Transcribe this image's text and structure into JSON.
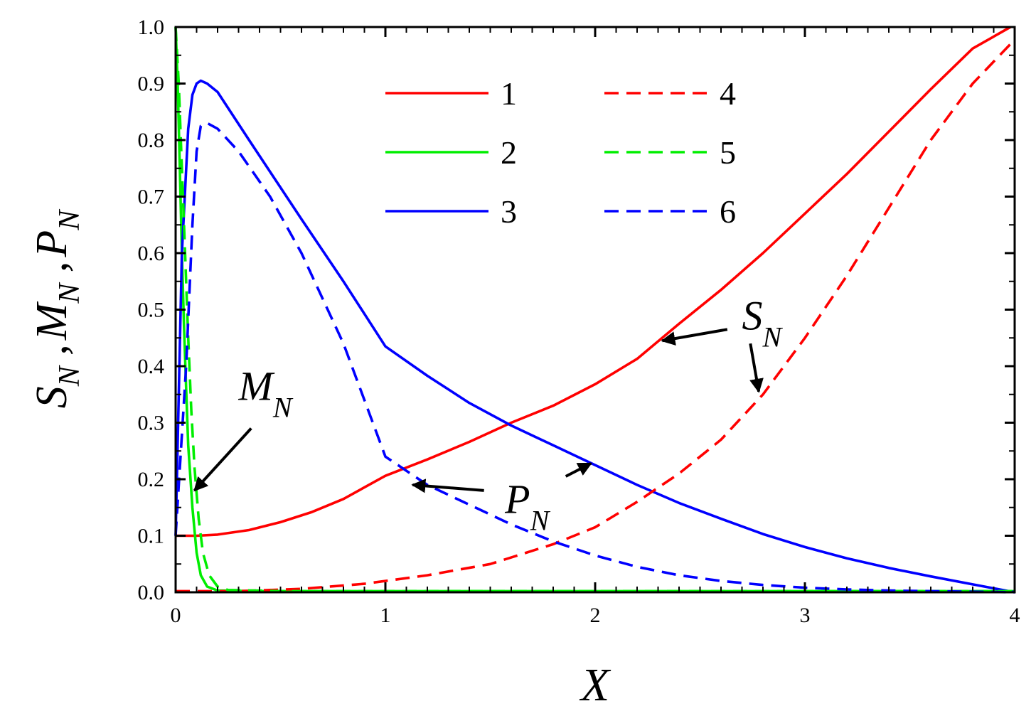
{
  "chart_data": {
    "type": "line",
    "xlabel": "X",
    "ylabel_parts": [
      {
        "main": "S",
        "sub": "N"
      },
      {
        "main": "M",
        "sub": "N"
      },
      {
        "main": "P",
        "sub": "N"
      }
    ],
    "xlim": [
      0,
      4
    ],
    "ylim": [
      0,
      1.0
    ],
    "x_ticks": [
      "0",
      "1",
      "2",
      "3",
      "4"
    ],
    "y_ticks": [
      "0.0",
      "0.1",
      "0.2",
      "0.3",
      "0.4",
      "0.5",
      "0.6",
      "0.7",
      "0.8",
      "0.9",
      "1.0"
    ],
    "grid": false,
    "legend_position": "top-center",
    "series": [
      {
        "name": "1",
        "color": "#ff0000",
        "dash": "solid",
        "points": [
          [
            0,
            0.1
          ],
          [
            0.1,
            0.1
          ],
          [
            0.2,
            0.102
          ],
          [
            0.35,
            0.11
          ],
          [
            0.5,
            0.124
          ],
          [
            0.65,
            0.142
          ],
          [
            0.8,
            0.165
          ],
          [
            1.0,
            0.206
          ],
          [
            1.2,
            0.235
          ],
          [
            1.4,
            0.266
          ],
          [
            1.6,
            0.3
          ],
          [
            1.8,
            0.33
          ],
          [
            2.0,
            0.368
          ],
          [
            2.2,
            0.413
          ],
          [
            2.4,
            0.475
          ],
          [
            2.6,
            0.535
          ],
          [
            2.8,
            0.6
          ],
          [
            3.0,
            0.67
          ],
          [
            3.2,
            0.74
          ],
          [
            3.4,
            0.815
          ],
          [
            3.6,
            0.89
          ],
          [
            3.8,
            0.962
          ],
          [
            3.98,
            1.0
          ]
        ]
      },
      {
        "name": "2",
        "color": "#00ee00",
        "dash": "solid",
        "points": [
          [
            0,
            1.0
          ],
          [
            0.01,
            0.9
          ],
          [
            0.02,
            0.75
          ],
          [
            0.03,
            0.6
          ],
          [
            0.04,
            0.47
          ],
          [
            0.05,
            0.36
          ],
          [
            0.06,
            0.26
          ],
          [
            0.08,
            0.15
          ],
          [
            0.1,
            0.07
          ],
          [
            0.12,
            0.03
          ],
          [
            0.15,
            0.01
          ],
          [
            0.2,
            0.003
          ],
          [
            0.4,
            0.002
          ],
          [
            1.0,
            0.002
          ],
          [
            2.0,
            0.002
          ],
          [
            3.0,
            0.002
          ],
          [
            4.0,
            0.002
          ]
        ]
      },
      {
        "name": "3",
        "color": "#0000ff",
        "dash": "solid",
        "points": [
          [
            0,
            0.1
          ],
          [
            0.03,
            0.6
          ],
          [
            0.06,
            0.82
          ],
          [
            0.08,
            0.88
          ],
          [
            0.1,
            0.9
          ],
          [
            0.12,
            0.905
          ],
          [
            0.15,
            0.9
          ],
          [
            0.2,
            0.885
          ],
          [
            0.35,
            0.8
          ],
          [
            0.6,
            0.66
          ],
          [
            0.8,
            0.55
          ],
          [
            1.0,
            0.435
          ],
          [
            1.2,
            0.383
          ],
          [
            1.4,
            0.335
          ],
          [
            1.6,
            0.295
          ],
          [
            1.8,
            0.26
          ],
          [
            2.0,
            0.225
          ],
          [
            2.2,
            0.19
          ],
          [
            2.4,
            0.158
          ],
          [
            2.6,
            0.13
          ],
          [
            2.8,
            0.103
          ],
          [
            3.0,
            0.08
          ],
          [
            3.2,
            0.06
          ],
          [
            3.4,
            0.043
          ],
          [
            3.6,
            0.028
          ],
          [
            3.8,
            0.014
          ],
          [
            4.0,
            0.0
          ]
        ]
      },
      {
        "name": "4",
        "color": "#ff0000",
        "dash": "dashed",
        "points": [
          [
            0,
            0.002
          ],
          [
            0.3,
            0.002
          ],
          [
            0.6,
            0.006
          ],
          [
            0.9,
            0.015
          ],
          [
            1.2,
            0.03
          ],
          [
            1.5,
            0.05
          ],
          [
            1.8,
            0.085
          ],
          [
            2.0,
            0.115
          ],
          [
            2.2,
            0.16
          ],
          [
            2.4,
            0.21
          ],
          [
            2.6,
            0.27
          ],
          [
            2.8,
            0.35
          ],
          [
            3.0,
            0.45
          ],
          [
            3.2,
            0.56
          ],
          [
            3.4,
            0.68
          ],
          [
            3.6,
            0.8
          ],
          [
            3.8,
            0.9
          ],
          [
            3.98,
            0.97
          ]
        ]
      },
      {
        "name": "5",
        "color": "#00ee00",
        "dash": "dashed",
        "points": [
          [
            0,
            1.0
          ],
          [
            0.015,
            0.9
          ],
          [
            0.03,
            0.75
          ],
          [
            0.045,
            0.6
          ],
          [
            0.06,
            0.45
          ],
          [
            0.075,
            0.32
          ],
          [
            0.09,
            0.22
          ],
          [
            0.11,
            0.13
          ],
          [
            0.13,
            0.07
          ],
          [
            0.16,
            0.03
          ],
          [
            0.2,
            0.01
          ],
          [
            0.25,
            0.004
          ],
          [
            0.5,
            0.002
          ],
          [
            1.0,
            0.002
          ],
          [
            2.0,
            0.002
          ],
          [
            3.0,
            0.002
          ],
          [
            4.0,
            0.002
          ]
        ]
      },
      {
        "name": "6",
        "color": "#0000ff",
        "dash": "dashed",
        "points": [
          [
            0,
            0.1
          ],
          [
            0.05,
            0.4
          ],
          [
            0.08,
            0.65
          ],
          [
            0.1,
            0.78
          ],
          [
            0.12,
            0.825
          ],
          [
            0.15,
            0.83
          ],
          [
            0.2,
            0.82
          ],
          [
            0.3,
            0.78
          ],
          [
            0.45,
            0.7
          ],
          [
            0.6,
            0.6
          ],
          [
            0.8,
            0.44
          ],
          [
            1.0,
            0.24
          ],
          [
            1.2,
            0.19
          ],
          [
            1.4,
            0.155
          ],
          [
            1.6,
            0.12
          ],
          [
            1.8,
            0.09
          ],
          [
            2.0,
            0.065
          ],
          [
            2.2,
            0.045
          ],
          [
            2.4,
            0.03
          ],
          [
            2.6,
            0.02
          ],
          [
            2.8,
            0.013
          ],
          [
            3.0,
            0.008
          ],
          [
            3.2,
            0.005
          ],
          [
            3.4,
            0.003
          ],
          [
            3.6,
            0.002
          ],
          [
            3.8,
            0.001
          ],
          [
            4.0,
            0.0
          ]
        ]
      }
    ],
    "annotations": [
      {
        "main": "M",
        "sub": "N",
        "anchor": [
          0.3,
          0.34
        ],
        "arrows": [
          {
            "from": [
              0.36,
              0.29
            ],
            "to": [
              0.09,
              0.18
            ]
          }
        ]
      },
      {
        "main": "S",
        "sub": "N",
        "anchor": [
          2.7,
          0.465
        ],
        "arrows": [
          {
            "from": [
              2.63,
              0.465
            ],
            "to": [
              2.32,
              0.445
            ]
          },
          {
            "from": [
              2.74,
              0.44
            ],
            "to": [
              2.78,
              0.355
            ]
          }
        ]
      },
      {
        "main": "P",
        "sub": "N",
        "anchor": [
          1.57,
          0.14
        ],
        "arrows": [
          {
            "from": [
              1.47,
              0.18
            ],
            "to": [
              1.13,
              0.19
            ]
          },
          {
            "from": [
              1.86,
              0.205
            ],
            "to": [
              1.98,
              0.228
            ]
          }
        ]
      }
    ]
  }
}
